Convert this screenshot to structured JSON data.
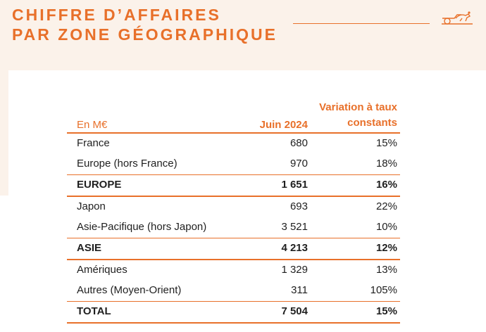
{
  "header": {
    "title_line1": "CHIFFRE D’AFFAIRES",
    "title_line2": "PAR ZONE GÉOGRAPHIQUE"
  },
  "colors": {
    "accent": "#e8702a",
    "band": "#fbf2ea"
  },
  "logo": {
    "icon": "carriage-logo-icon"
  },
  "table": {
    "col_label": "En M€",
    "col_june": "Juin 2024",
    "col_var_line1": "Variation à taux",
    "col_var_line2": "constants",
    "rows": [
      {
        "label": "France",
        "value": "680",
        "variation": "15%"
      },
      {
        "label": "Europe (hors France)",
        "value": "970",
        "variation": "18%"
      },
      {
        "label": "EUROPE",
        "value": "1 651",
        "variation": "16%"
      },
      {
        "label": "Japon",
        "value": "693",
        "variation": "22%"
      },
      {
        "label": "Asie-Pacifique (hors Japon)",
        "value": "3 521",
        "variation": "10%"
      },
      {
        "label": "ASIE",
        "value": "4 213",
        "variation": "12%"
      },
      {
        "label": "Amériques",
        "value": "1 329",
        "variation": "13%"
      },
      {
        "label": "Autres (Moyen-Orient)",
        "value": "311",
        "variation": "105%"
      },
      {
        "label": "TOTAL",
        "value": "7 504",
        "variation": "15%"
      }
    ]
  }
}
